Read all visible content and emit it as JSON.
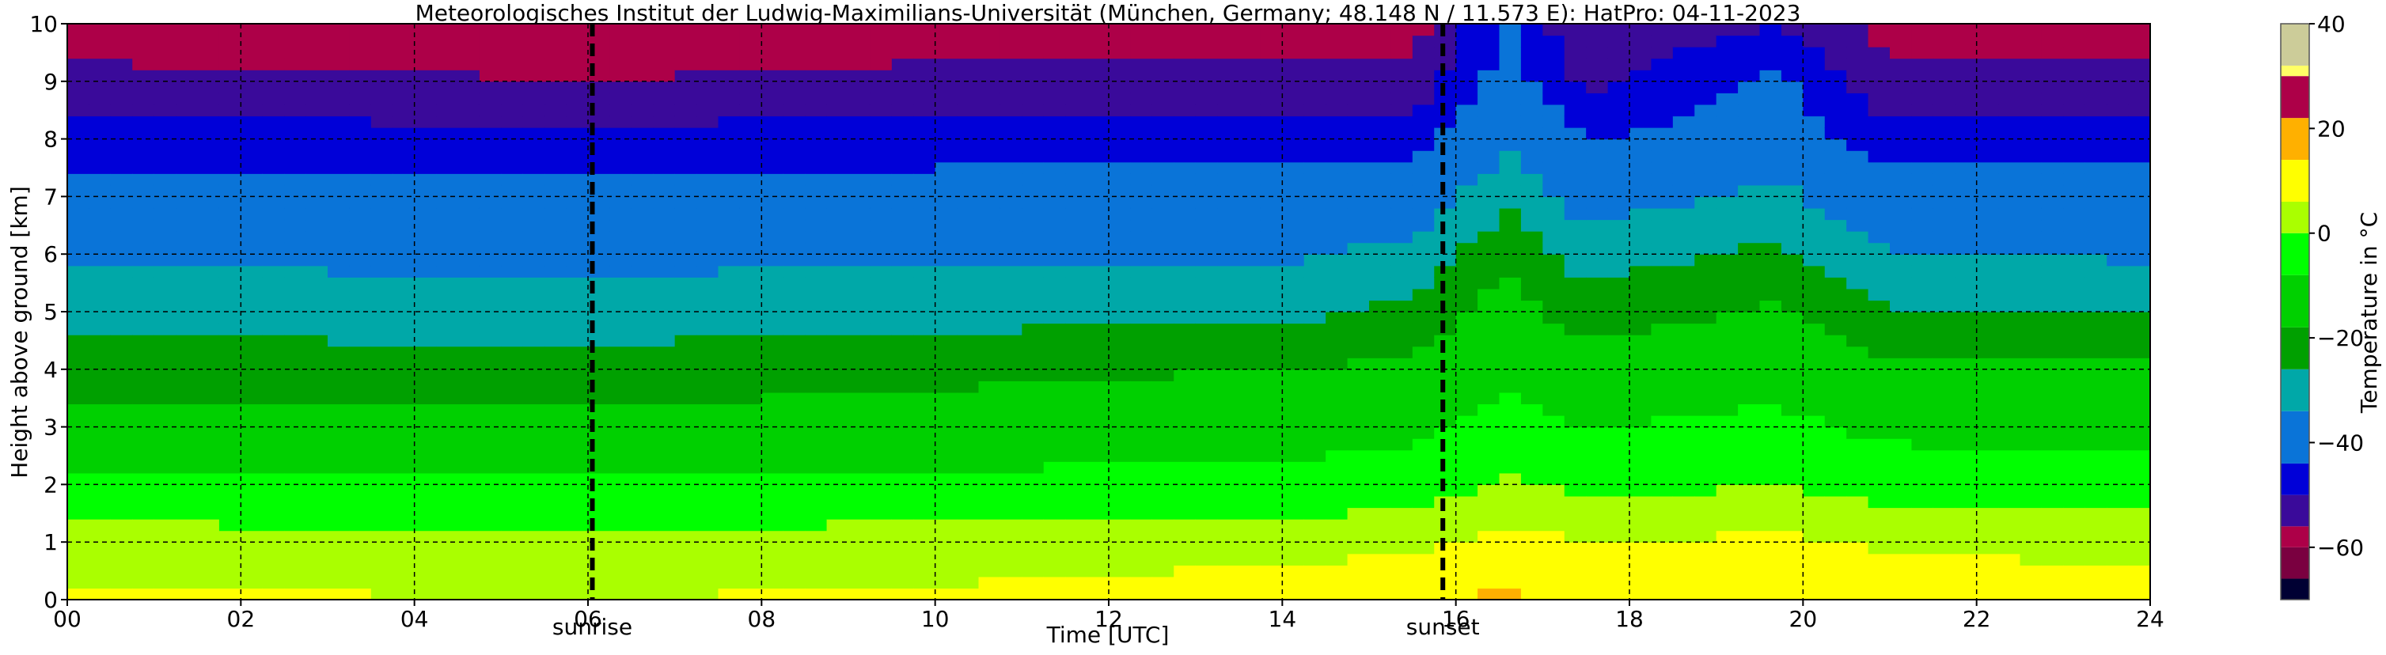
{
  "chart_data": {
    "type": "heatmap",
    "title": "Meteorologisches Institut der Ludwig-Maximilians-Universität (München, Germany; 48.148 N / 11.573 E):    HatPro: 04-11-2023",
    "xlabel": "Time [UTC]",
    "ylabel": "Height above ground [km]",
    "colorbar_label": "Temperature in °C",
    "xlim": [
      0,
      24
    ],
    "ylim": [
      0,
      10
    ],
    "x_ticks": [
      0,
      2,
      4,
      6,
      8,
      10,
      12,
      14,
      16,
      18,
      20,
      22,
      24
    ],
    "x_tick_labels": [
      "00",
      "02",
      "04",
      "06",
      "08",
      "10",
      "12",
      "14",
      "16",
      "18",
      "20",
      "22",
      "24"
    ],
    "y_ticks": [
      0,
      1,
      2,
      3,
      4,
      5,
      6,
      7,
      8,
      9,
      10
    ],
    "y_tick_labels": [
      "0",
      "1",
      "2",
      "3",
      "4",
      "5",
      "6",
      "7",
      "8",
      "9",
      "10"
    ],
    "grid": true,
    "events": [
      {
        "label": "sunrise",
        "time": 6.05
      },
      {
        "label": "sunset",
        "time": 15.85
      }
    ],
    "colorbar": {
      "ticks": [
        -60,
        -40,
        -20,
        0,
        20,
        40
      ],
      "tick_labels": [
        "−60",
        "−40",
        "−20",
        "0",
        "20",
        "40"
      ],
      "range": [
        -70,
        40
      ],
      "colors": [
        {
          "from": -70,
          "to": -66,
          "color": "#000033"
        },
        {
          "from": -66,
          "to": -60,
          "color": "#7a0040"
        },
        {
          "from": -60,
          "to": -56,
          "color": "#ad0048"
        },
        {
          "from": -56,
          "to": -50,
          "color": "#3a0a9a"
        },
        {
          "from": -50,
          "to": -44,
          "color": "#0000d8"
        },
        {
          "from": -44,
          "to": -34,
          "color": "#0a74d8"
        },
        {
          "from": -34,
          "to": -26,
          "color": "#00a8a8"
        },
        {
          "from": -26,
          "to": -18,
          "color": "#00a000"
        },
        {
          "from": -18,
          "to": -8,
          "color": "#00d000"
        },
        {
          "from": -8,
          "to": 0,
          "color": "#00ff00"
        },
        {
          "from": 0,
          "to": 6,
          "color": "#aaff00"
        },
        {
          "from": 6,
          "to": 14,
          "color": "#ffff00"
        },
        {
          "from": 14,
          "to": 22,
          "color": "#ffb000"
        },
        {
          "from": 22,
          "to": 30,
          "color": "#ad0048"
        },
        {
          "from": 30,
          "to": 32,
          "color": "#ffff66"
        },
        {
          "from": 32,
          "to": 40,
          "color": "#cccc99"
        }
      ]
    },
    "heights_km": [
      0,
      1,
      2,
      3,
      4,
      5,
      6,
      7,
      8,
      9,
      10
    ],
    "profiles": [
      {
        "time": 0,
        "temps": [
          7,
          3,
          -6,
          -15,
          -21,
          -30,
          -35,
          -41,
          -47,
          -55,
          -58
        ]
      },
      {
        "time": 6,
        "temps": [
          6,
          2,
          -7,
          -16,
          -22,
          -31,
          -36,
          -42,
          -48,
          -56,
          -58
        ]
      },
      {
        "time": 10,
        "temps": [
          7,
          3,
          -6,
          -14,
          -20,
          -29,
          -35,
          -41,
          -47,
          -55,
          -58
        ]
      },
      {
        "time": 14,
        "temps": [
          9,
          4,
          -5,
          -12,
          -18,
          -28,
          -35,
          -41,
          -47,
          -55,
          -58
        ]
      },
      {
        "time": 15.5,
        "temps": [
          10,
          5,
          -4,
          -10,
          -16,
          -24,
          -32,
          -40,
          -46,
          -54,
          -58
        ]
      },
      {
        "time": 16.6,
        "temps": [
          16,
          8,
          1,
          -5,
          -10,
          -14,
          -20,
          -28,
          -36,
          -40,
          -44
        ]
      },
      {
        "time": 17.5,
        "temps": [
          11,
          6,
          -2,
          -8,
          -14,
          -22,
          -30,
          -38,
          -44,
          -52,
          -56
        ]
      },
      {
        "time": 19.7,
        "temps": [
          14,
          7,
          0,
          -6,
          -11,
          -17,
          -24,
          -32,
          -40,
          -42,
          -50
        ]
      },
      {
        "time": 21,
        "temps": [
          10,
          5,
          -3,
          -10,
          -16,
          -26,
          -34,
          -41,
          -47,
          -55,
          -58
        ]
      },
      {
        "time": 24,
        "temps": [
          9,
          4,
          -4,
          -11,
          -17,
          -27,
          -35,
          -41,
          -47,
          -55,
          -58
        ]
      }
    ]
  }
}
